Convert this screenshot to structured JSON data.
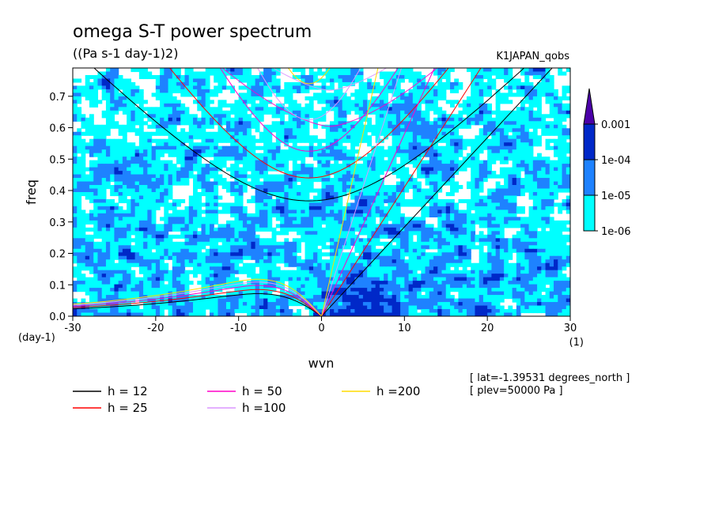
{
  "chart_data": {
    "type": "heatmap",
    "title": "omega S-T power spectrum",
    "subtitle": "((Pa s-1 day-1)2)",
    "dataset": "K1JAPAN_qobs",
    "xlabel": "wvn",
    "xunit": "(1)",
    "ylabel": "freq",
    "yunit": "(day-1)",
    "xlim": [
      -30,
      30
    ],
    "ylim": [
      0,
      0.79
    ],
    "xticks": [
      "-30",
      "-20",
      "-10",
      "0",
      "10",
      "20",
      "30"
    ],
    "yticks": [
      "0.0",
      "0.1",
      "0.2",
      "0.3",
      "0.4",
      "0.5",
      "0.6",
      "0.7"
    ],
    "colorbar": {
      "levels": [
        "1e-06",
        "1e-05",
        "1e-04",
        "0.001"
      ],
      "colors": [
        "#ffffff",
        "#00ffff",
        "#1e82ff",
        "#0028c8",
        "#4b00a8"
      ]
    },
    "legend": [
      {
        "label": "h = 12",
        "color": "#000000"
      },
      {
        "label": "h = 25",
        "color": "#ff0000"
      },
      {
        "label": "h = 50",
        "color": "#ff00c8"
      },
      {
        "label": "h =100",
        "color": "#dc96ff"
      },
      {
        "label": "h =200",
        "color": "#ffdc00"
      }
    ],
    "annotations": [
      "[ lat=-1.39531 degrees_north ]",
      "[ plev=50000 Pa ]"
    ],
    "dispersion_curves": [
      {
        "h": 12,
        "color": "#000000",
        "kelvin_slope": 0.0284,
        "ig_min_freq": 0.367,
        "rossby_peak": 0.072
      },
      {
        "h": 25,
        "color": "#ff0000",
        "kelvin_slope": 0.0411,
        "ig_min_freq": 0.44,
        "rossby_peak": 0.085
      },
      {
        "h": 50,
        "color": "#ff00c8",
        "kelvin_slope": 0.058,
        "ig_min_freq": 0.525,
        "rossby_peak": 0.098
      },
      {
        "h": 100,
        "color": "#dc96ff",
        "kelvin_slope": 0.082,
        "ig_min_freq": 0.625,
        "rossby_peak": 0.109
      },
      {
        "h": 200,
        "color": "#ffdc00",
        "kelvin_slope": 0.116,
        "ig_min_freq": 0.74,
        "rossby_peak": 0.118
      }
    ]
  }
}
